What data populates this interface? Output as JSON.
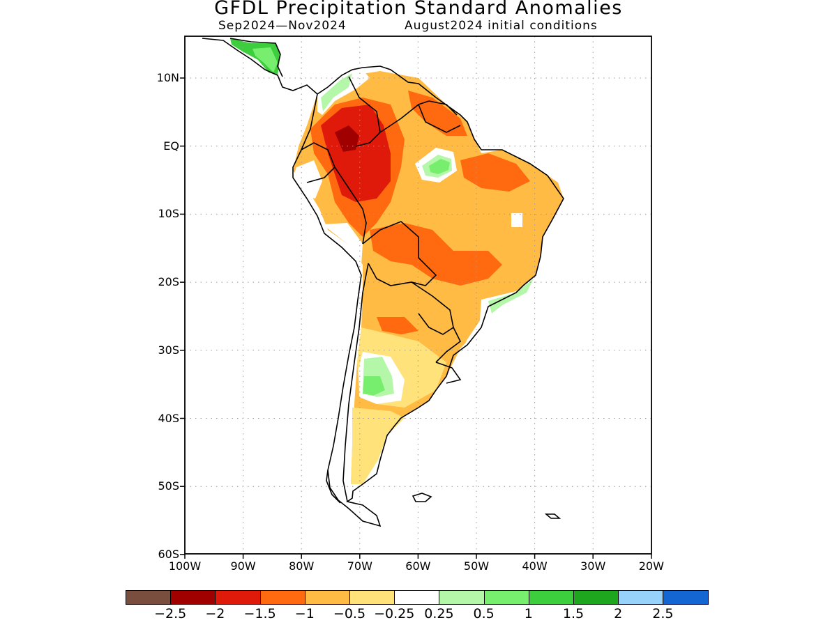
{
  "title": "GFDL Precipitation Standard Anomalies",
  "subtitle_left": "Sep2024—Nov2024",
  "subtitle_right": "August2024 initial conditions",
  "y_axis_labels": [
    "10N",
    "EQ",
    "10S",
    "20S",
    "30S",
    "40S",
    "50S",
    "60S"
  ],
  "x_axis_labels": [
    "100W",
    "90W",
    "80W",
    "70W",
    "60W",
    "50W",
    "40W",
    "30W",
    "20W"
  ],
  "colorbar": {
    "colors": [
      "#7a4e3e",
      "#a00000",
      "#e01a0a",
      "#ff6a10",
      "#ffbb44",
      "#ffe27a",
      "#ffffff",
      "#b4f7a8",
      "#78ee6e",
      "#3cce3c",
      "#1ea61e",
      "#96d2fa",
      "#1466d2"
    ],
    "labels": [
      "−2.5",
      "−2",
      "−1.5",
      "−1",
      "−0.5",
      "−0.25",
      "0.25",
      "0.5",
      "1",
      "1.5",
      "2",
      "2.5"
    ]
  },
  "colors": {
    "frame": "#000000",
    "grid": "#9a9a9a",
    "coast": "#000000"
  }
}
